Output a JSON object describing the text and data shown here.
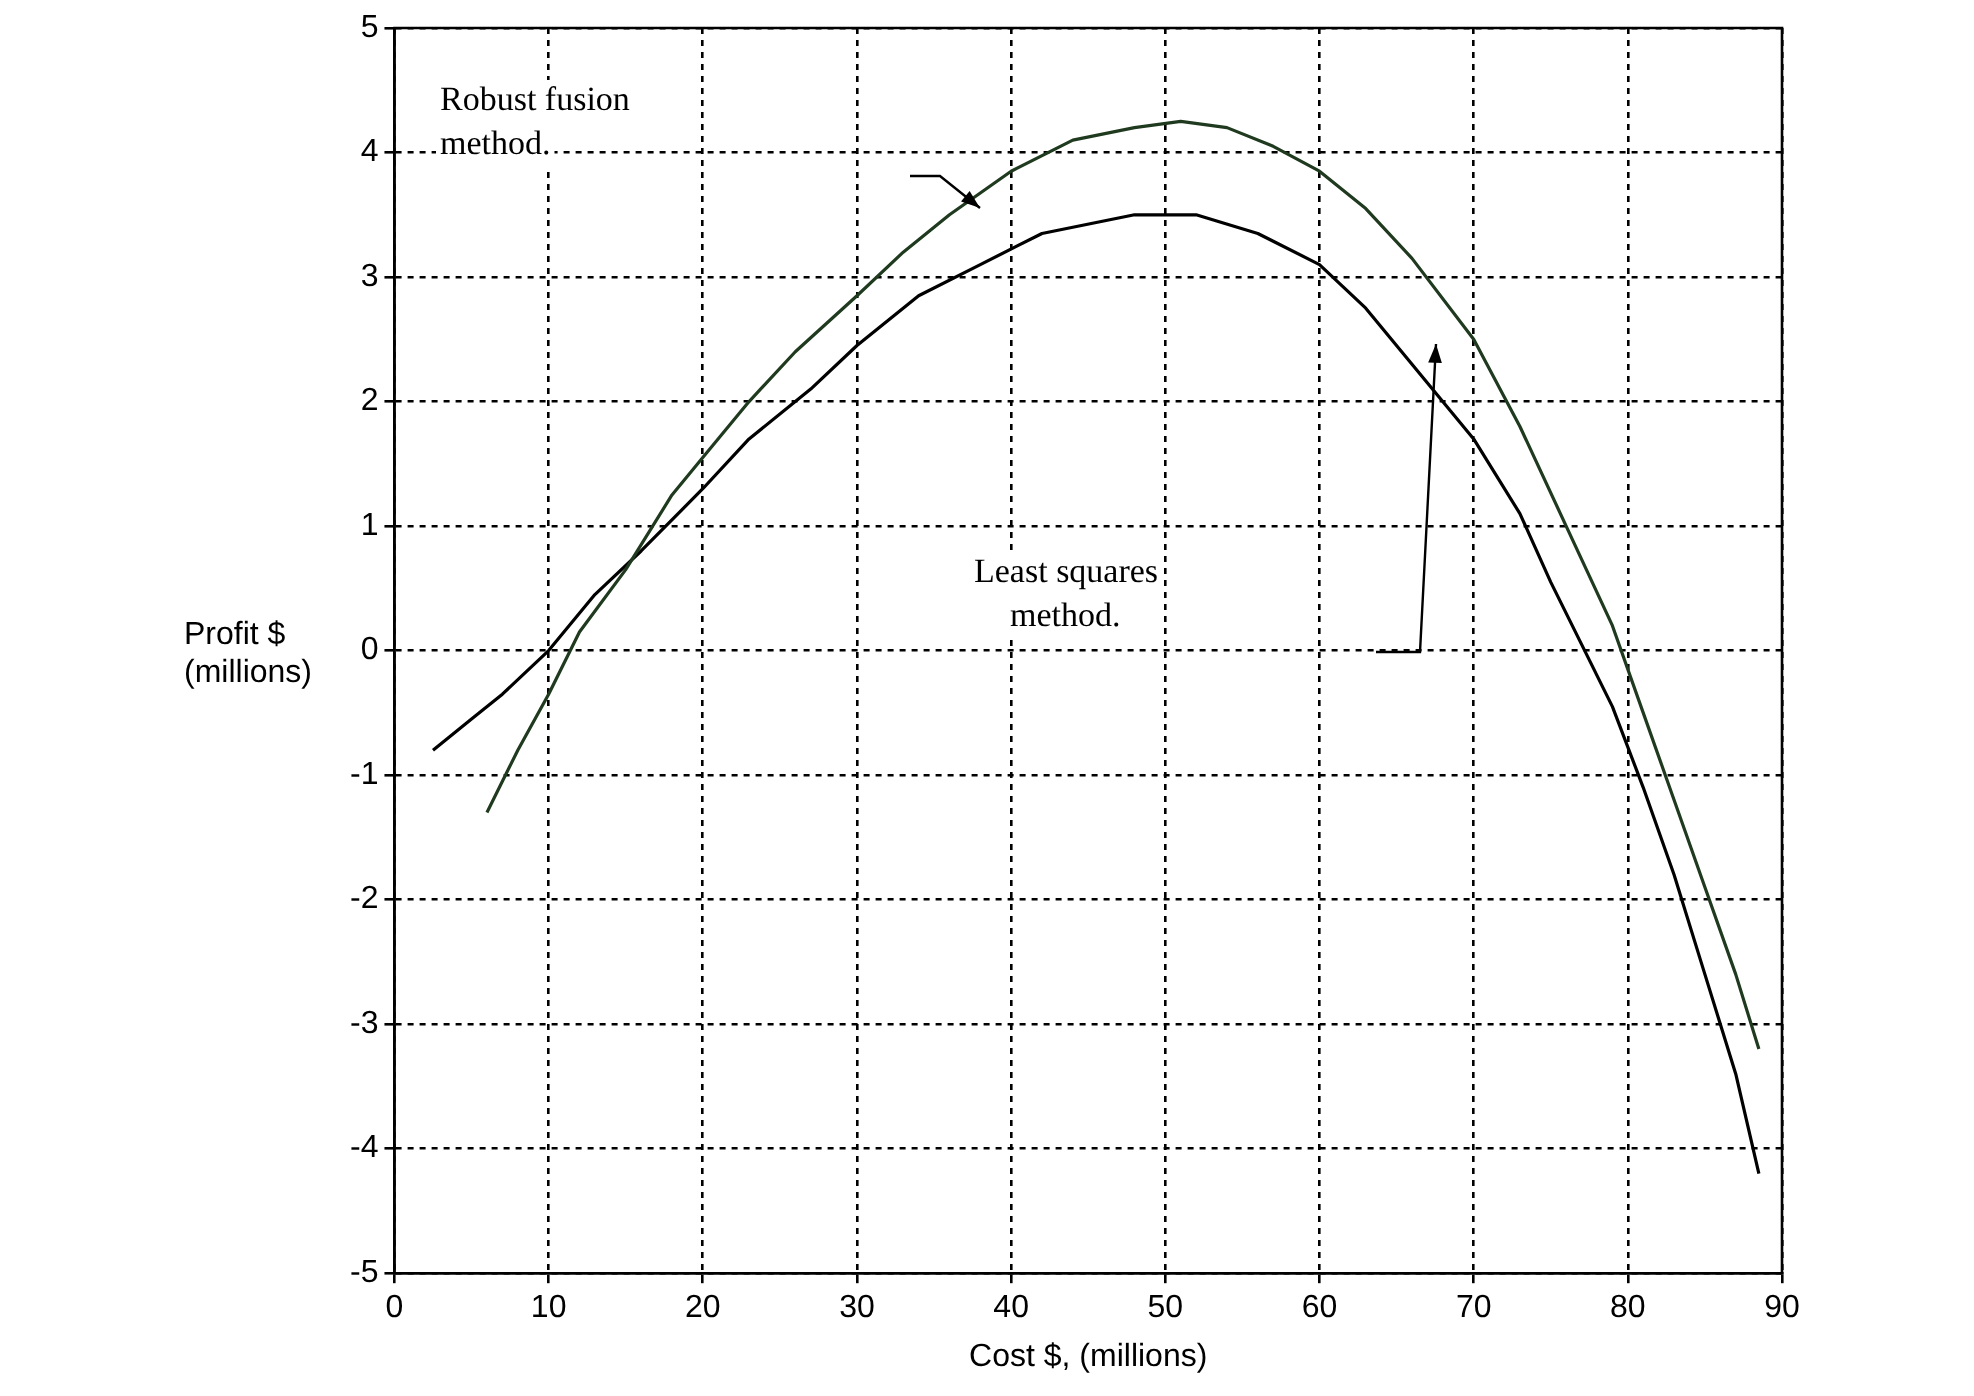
{
  "chart_data": {
    "type": "line",
    "xlabel": "Cost $, (millions)",
    "ylabel": "Profit $ (millions)",
    "xlim": [
      0,
      90
    ],
    "xticks": [
      0,
      10,
      20,
      30,
      40,
      50,
      60,
      70,
      80,
      90
    ],
    "ylim": [
      -5,
      5
    ],
    "yticks": [
      -5,
      -4,
      -3,
      -2,
      -1,
      0,
      1,
      2,
      3,
      4,
      5
    ],
    "grid": true,
    "legend": false,
    "marker": "none",
    "line_style": "solid",
    "series": [
      {
        "color": "#1f3a1f",
        "x": [
          6,
          8,
          10,
          12,
          15,
          18,
          20,
          23,
          26,
          30,
          33,
          36,
          40,
          44,
          48,
          51,
          54,
          57,
          60,
          63,
          66,
          70,
          73,
          76,
          79,
          81,
          83,
          85,
          87,
          88.5
        ],
        "values": [
          -1.3,
          -0.8,
          -0.35,
          0.15,
          0.65,
          1.25,
          1.55,
          2.0,
          2.4,
          2.85,
          3.2,
          3.5,
          3.85,
          4.1,
          4.2,
          4.25,
          4.2,
          4.05,
          3.85,
          3.55,
          3.15,
          2.5,
          1.8,
          1.0,
          0.2,
          -0.5,
          -1.2,
          -1.9,
          -2.6,
          -3.2
        ]
      },
      {
        "color": "#000000",
        "x": [
          2.5,
          5,
          7,
          10,
          13,
          16,
          20,
          23,
          27,
          30,
          34,
          38,
          42,
          46,
          48,
          52,
          56,
          60,
          63,
          66,
          70,
          73,
          75,
          77,
          79,
          81,
          83,
          85,
          87,
          88.5
        ],
        "values": [
          -0.8,
          -0.55,
          -0.35,
          0.0,
          0.45,
          0.8,
          1.3,
          1.7,
          2.1,
          2.45,
          2.85,
          3.1,
          3.35,
          3.45,
          3.5,
          3.5,
          3.35,
          3.1,
          2.75,
          2.3,
          1.7,
          1.1,
          0.55,
          0.05,
          -0.45,
          -1.1,
          -1.8,
          -2.6,
          -3.4,
          -4.2
        ]
      }
    ],
    "annotations": [
      "Robust fusion method.",
      "Least squares method."
    ]
  }
}
